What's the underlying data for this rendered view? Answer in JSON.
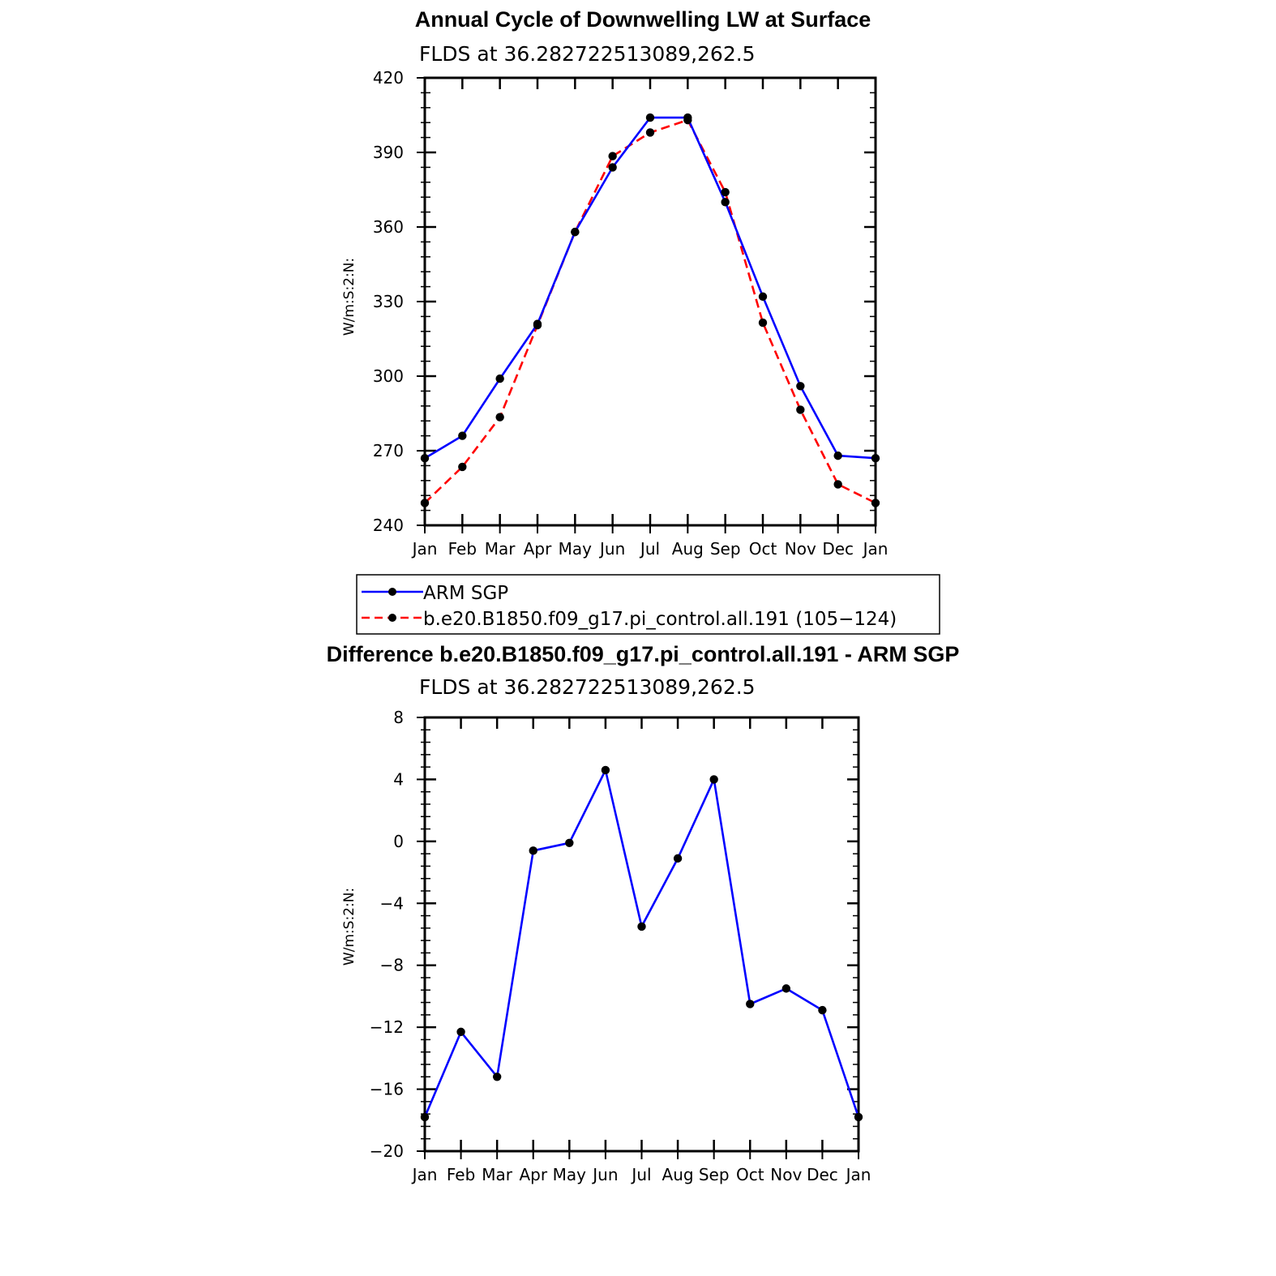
{
  "chart_data": [
    {
      "type": "line",
      "title": "Annual Cycle of Downwelling LW at Surface",
      "subtitle": "FLDS at 36.282722513089,262.5",
      "xlabel": "",
      "ylabel": "W/m:S:2:N:",
      "categories": [
        "Jan",
        "Feb",
        "Mar",
        "Apr",
        "May",
        "Jun",
        "Jul",
        "Aug",
        "Sep",
        "Oct",
        "Nov",
        "Dec",
        "Jan"
      ],
      "ylim": [
        240,
        420
      ],
      "yticks": [
        240,
        270,
        300,
        330,
        360,
        390,
        420
      ],
      "grid": false,
      "legend_position": "bottom",
      "series": [
        {
          "name": "ARM SGP",
          "color": "#0000ff",
          "dash": "solid",
          "values": [
            267,
            276,
            299,
            321,
            358,
            384,
            404,
            404,
            370,
            332,
            296,
            268,
            267
          ]
        },
        {
          "name": "b.e20.B1850.f09_g17.pi_control.all.191 (105−124)",
          "color": "#ff0000",
          "dash": "dashed",
          "values": [
            249,
            263.5,
            283.5,
            320.5,
            358,
            388.5,
            398,
            403,
            374,
            321.5,
            286.5,
            256.5,
            249
          ]
        }
      ]
    },
    {
      "type": "line",
      "title": "Difference b.e20.B1850.f09_g17.pi_control.all.191 - ARM SGP",
      "subtitle": "FLDS at 36.282722513089,262.5",
      "xlabel": "",
      "ylabel": "W/m:S:2:N:",
      "categories": [
        "Jan",
        "Feb",
        "Mar",
        "Apr",
        "May",
        "Jun",
        "Jul",
        "Aug",
        "Sep",
        "Oct",
        "Nov",
        "Dec",
        "Jan"
      ],
      "ylim": [
        -20,
        8
      ],
      "yticks": [
        -20,
        -16,
        -12,
        -8,
        -4,
        0,
        4,
        8
      ],
      "ytick_labels": [
        "−20",
        "−16",
        "−12",
        "−8",
        "−4",
        "0",
        "4",
        "8"
      ],
      "grid": false,
      "series": [
        {
          "color": "#0000ff",
          "dash": "solid",
          "values": [
            -17.8,
            -12.3,
            -15.2,
            -0.6,
            -0.1,
            4.6,
            -5.5,
            -1.1,
            4.0,
            -10.5,
            -9.5,
            -10.9,
            -17.8
          ]
        }
      ]
    }
  ]
}
